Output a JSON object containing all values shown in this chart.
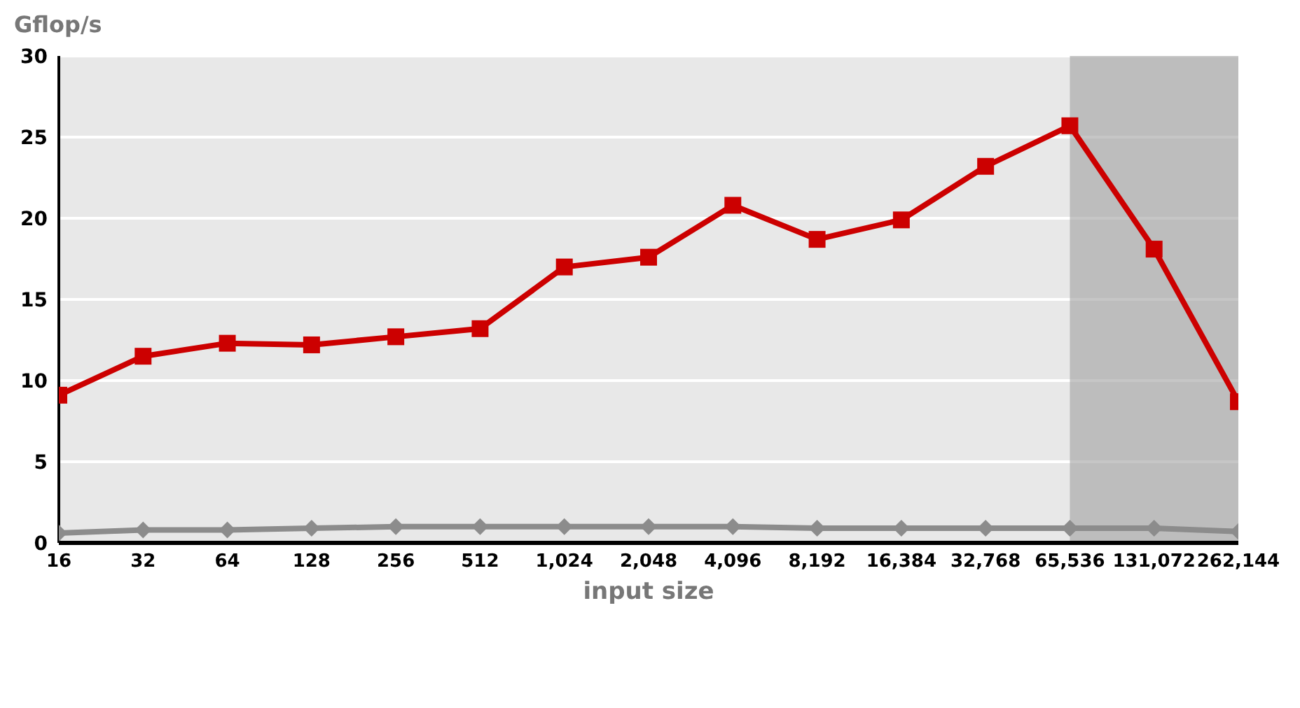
{
  "chart_data": {
    "type": "line",
    "ylabel": "Gflop/s",
    "xlabel": "input size",
    "categories": [
      "16",
      "32",
      "64",
      "128",
      "256",
      "512",
      "1,024",
      "2,048",
      "4,096",
      "8,192",
      "16,384",
      "32,768",
      "65,536",
      "131,072",
      "262,144"
    ],
    "series": [
      {
        "color": "#cc0000",
        "marker": "square",
        "values": [
          9.1,
          11.5,
          12.3,
          12.2,
          12.7,
          13.2,
          17.0,
          17.6,
          20.8,
          18.7,
          19.9,
          23.2,
          25.7,
          18.1,
          8.7
        ]
      },
      {
        "color": "#8c8c8c",
        "marker": "diamond",
        "values": [
          0.6,
          0.8,
          0.8,
          0.9,
          1.0,
          1.0,
          1.0,
          1.0,
          1.0,
          0.9,
          0.9,
          0.9,
          0.9,
          0.9,
          0.7
        ]
      }
    ],
    "ylim": [
      0,
      30
    ],
    "yticks": [
      0,
      5,
      10,
      15,
      20,
      25,
      30
    ],
    "grid": "y",
    "legend": false,
    "line_style": "solid",
    "bands": [
      {
        "axis": "x",
        "from": "65,536",
        "to": "262,144",
        "color": "#a0a0a0"
      }
    ]
  }
}
